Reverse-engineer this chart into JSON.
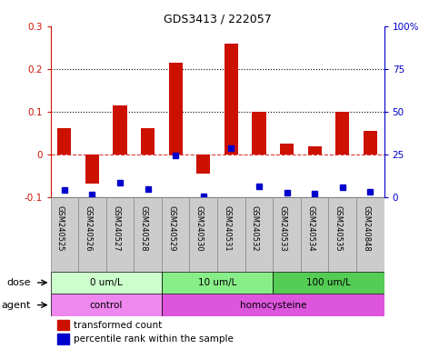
{
  "title": "GDS3413 / 222057",
  "samples": [
    "GSM240525",
    "GSM240526",
    "GSM240527",
    "GSM240528",
    "GSM240529",
    "GSM240530",
    "GSM240531",
    "GSM240532",
    "GSM240533",
    "GSM240534",
    "GSM240535",
    "GSM240848"
  ],
  "red_values": [
    0.06,
    -0.07,
    0.115,
    0.06,
    0.215,
    -0.045,
    0.26,
    0.1,
    0.025,
    0.018,
    0.1,
    0.055
  ],
  "blue_values": [
    -0.085,
    -0.095,
    -0.068,
    -0.082,
    -0.002,
    -0.098,
    0.015,
    -0.075,
    -0.09,
    -0.092,
    -0.078,
    -0.088
  ],
  "ylim": [
    -0.1,
    0.3
  ],
  "y2lim": [
    0,
    100
  ],
  "yticks_left": [
    -0.1,
    0.0,
    0.1,
    0.2,
    0.3
  ],
  "yticks_right": [
    0,
    25,
    50,
    75,
    100
  ],
  "ytick_labels_left": [
    "-0.1",
    "0",
    "0.1",
    "0.2",
    "0.3"
  ],
  "ytick_labels_right": [
    "0",
    "25",
    "50",
    "75",
    "100%"
  ],
  "hlines": [
    0.1,
    0.2
  ],
  "dose_groups": [
    {
      "label": "0 um/L",
      "start": 0,
      "end": 4,
      "color": "#ccffcc"
    },
    {
      "label": "10 um/L",
      "start": 4,
      "end": 8,
      "color": "#88ee88"
    },
    {
      "label": "100 um/L",
      "start": 8,
      "end": 12,
      "color": "#55cc55"
    }
  ],
  "agent_groups": [
    {
      "label": "control",
      "start": 0,
      "end": 4,
      "color": "#ee88ee"
    },
    {
      "label": "homocysteine",
      "start": 4,
      "end": 12,
      "color": "#dd55dd"
    }
  ],
  "red_color": "#cc1100",
  "blue_color": "#0000cc",
  "zero_line_color": "#dd3333",
  "bar_width": 0.5,
  "blue_marker_size": 5,
  "label_bg_color": "#cccccc",
  "label_border_color": "#888888"
}
